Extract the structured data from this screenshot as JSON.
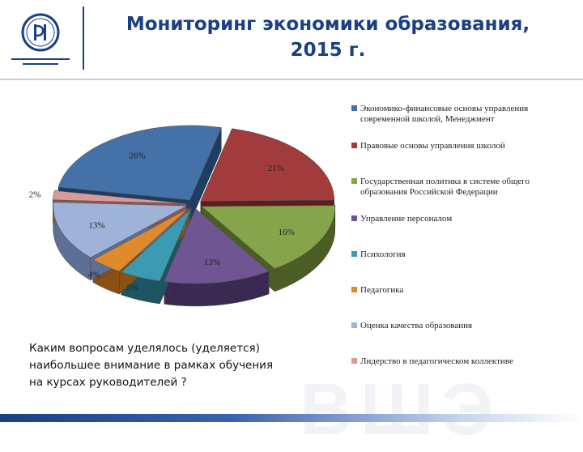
{
  "header": {
    "title_line1": "Мониторинг экономики образования,",
    "title_line2": "2015 г."
  },
  "question": {
    "line1": "Каким вопросам уделялось (уделяется)",
    "line2": "наибольшее внимание в рамках обучения",
    "line3": "на курсах руководителей ?"
  },
  "chart_data": {
    "type": "pie",
    "title": "",
    "legend_position": "right",
    "slices": [
      {
        "label": "Экономико-финансовые основы управления современной школой, Менеджмент",
        "value": 26,
        "value_label": "26%",
        "color": "#4472a8",
        "dark": "#1f3d61"
      },
      {
        "label": "Правовые основы управления школой",
        "value": 21,
        "value_label": "21%",
        "color": "#a23b3b",
        "dark": "#5e1d1d"
      },
      {
        "label": "Государственная политика в системе общего образования Российской Федерации",
        "value": 16,
        "value_label": "16%",
        "color": "#86a44a",
        "dark": "#4a5e24"
      },
      {
        "label": "Управление персоналом",
        "value": 13,
        "value_label": "13%",
        "color": "#6f5592",
        "dark": "#3a2a52"
      },
      {
        "label": "Психология",
        "value": 5,
        "value_label": "5%",
        "color": "#3a9bb2",
        "dark": "#1d5563"
      },
      {
        "label": "Педагогика",
        "value": 4,
        "value_label": "4%",
        "color": "#e08a2e",
        "dark": "#8a4f12"
      },
      {
        "label": "Оценка качества образования",
        "value": 13,
        "value_label": "13%",
        "color": "#9fb3d8",
        "dark": "#5d6f94"
      },
      {
        "label": "Лидерство в педагогическом коллективе",
        "value": 2,
        "value_label": "2%",
        "color": "#d99a9a",
        "dark": "#8e5656"
      }
    ]
  }
}
